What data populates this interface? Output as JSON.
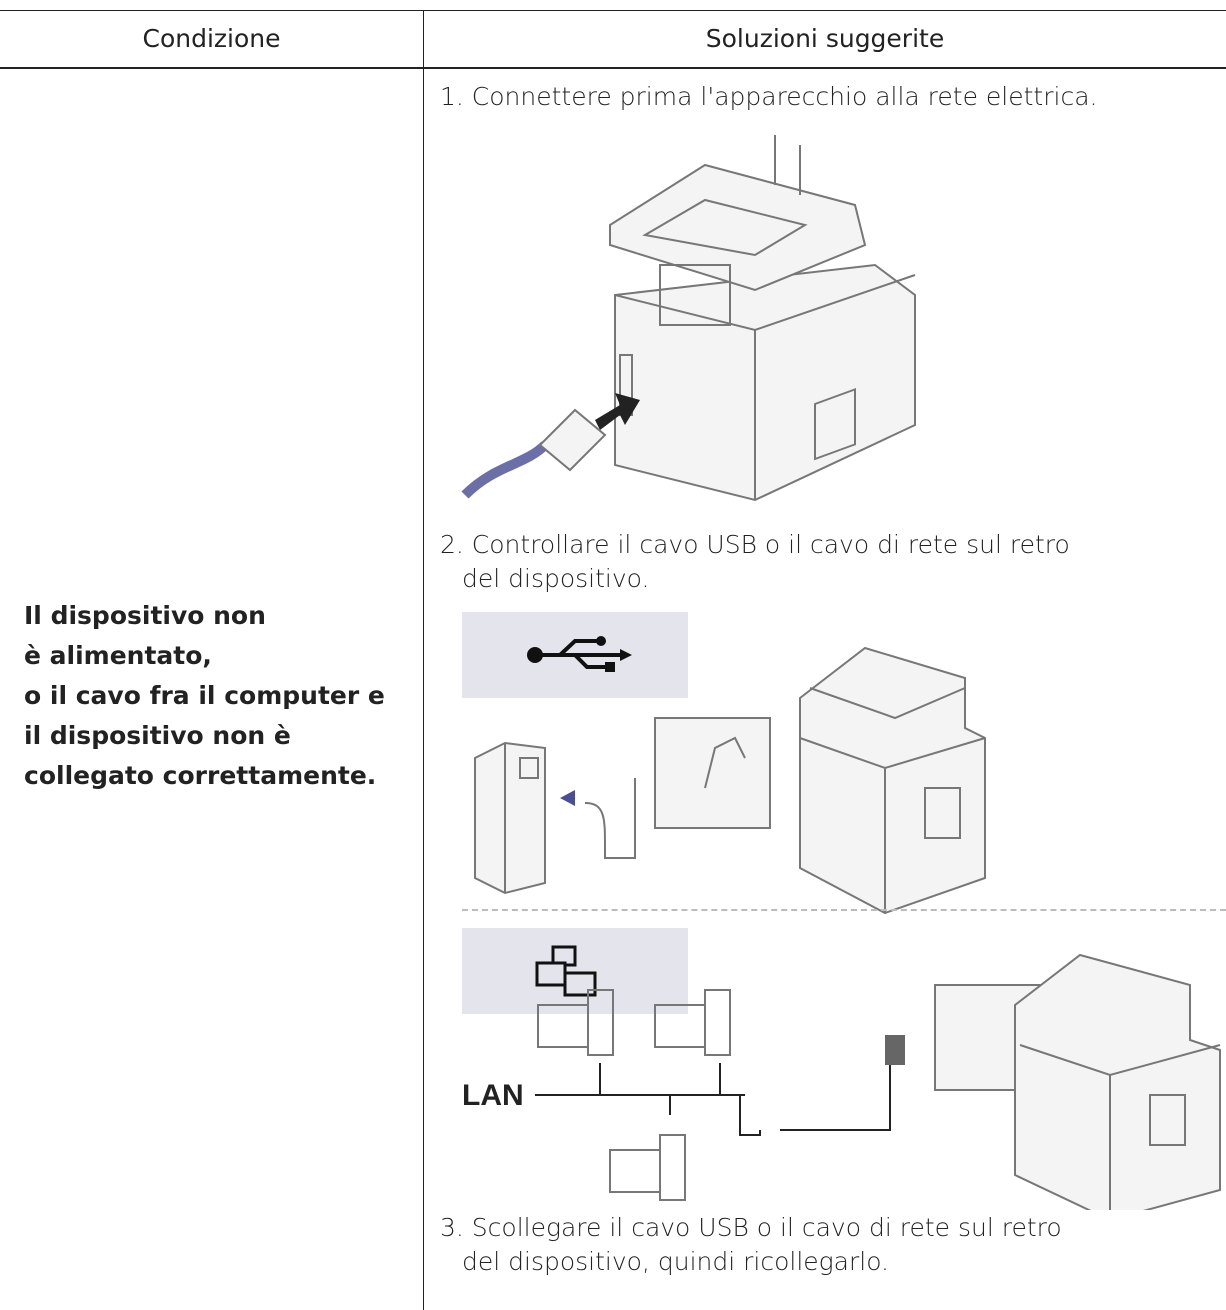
{
  "table": {
    "headers": [
      "Condizione",
      "Soluzioni suggerite"
    ],
    "condition": [
      "Il dispositivo non è alimentato,",
      "o il cavo fra il computer e il dispositivo non è collegato correttamente."
    ],
    "steps": [
      "1. Connettere prima l'apparecchio alla rete elettrica.",
      "2. Controllare il cavo USB o il cavo di rete sul retro del dispositivo.",
      "3. Scollegare il cavo USB o il cavo di rete sul retro del dispositivo, quindi ricollegarlo."
    ],
    "lan_label": "LAN"
  }
}
